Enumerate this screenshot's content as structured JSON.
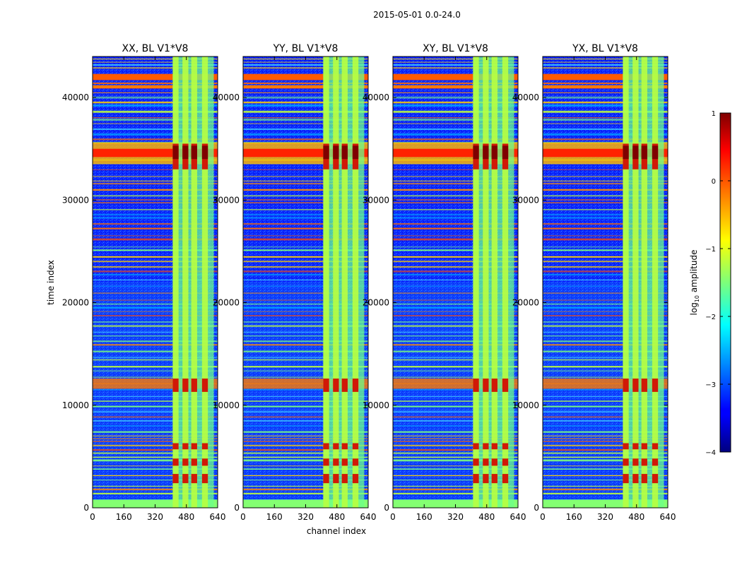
{
  "figure": {
    "suptitle": "2015-05-01 0.0-24.0"
  },
  "chart_data": {
    "type": "heatmap",
    "colormap": "jet",
    "xlabel": "channel index",
    "ylabel": "time index",
    "xlim": [
      0,
      640
    ],
    "ylim": [
      0,
      44000
    ],
    "x_ticks": [
      0,
      160,
      320,
      480,
      640
    ],
    "y_ticks": [
      0,
      10000,
      20000,
      30000,
      40000
    ],
    "panels": [
      {
        "title": "XX, BL V1*V8",
        "pol": "XX"
      },
      {
        "title": "YY, BL V1*V8",
        "pol": "YY"
      },
      {
        "title": "XY, BL V1*V8",
        "pol": "XY"
      },
      {
        "title": "YX, BL V1*V8",
        "pol": "YX"
      }
    ],
    "colorbar": {
      "label": "log10 amplitude",
      "label_main": "log",
      "label_sub": "10",
      "label_rest": " amplitude",
      "range": [
        -4,
        1
      ],
      "ticks": [
        "1",
        "0",
        "−1",
        "−2",
        "−3",
        "−4"
      ],
      "tick_values": [
        1,
        0,
        -1,
        -2,
        -3,
        -4
      ]
    },
    "features": {
      "band_channels": [
        410,
        620
      ],
      "band_columns": [
        [
          410,
          440
        ],
        [
          460,
          490
        ],
        [
          505,
          535
        ],
        [
          560,
          590
        ]
      ],
      "strong_rfi_time_rows": [
        [
          33500,
          35500
        ],
        [
          41800,
          42200
        ],
        [
          11500,
          12500
        ],
        [
          2500,
          3200
        ],
        [
          4200,
          4800
        ]
      ]
    }
  }
}
